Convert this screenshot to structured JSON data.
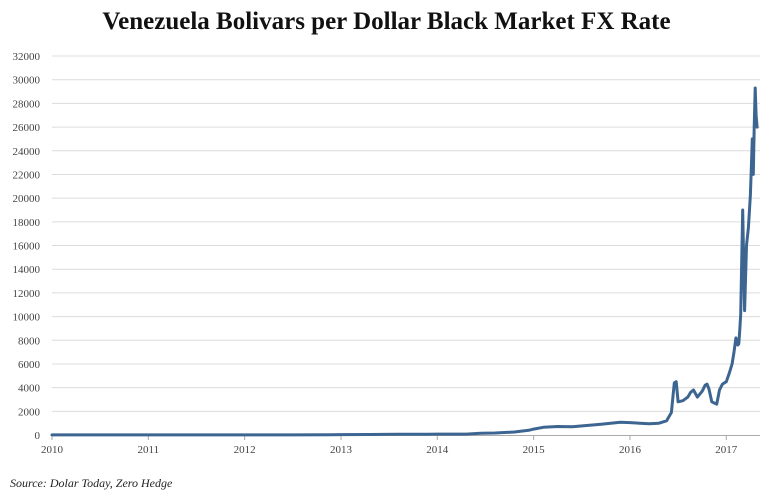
{
  "chart_data": {
    "type": "line",
    "title": "Venezuela Bolivars per Dollar Black Market FX Rate",
    "source": "Source: Dolar Today, Zero Hedge",
    "xlabel": "",
    "ylabel": "",
    "xlim": [
      2010,
      2017.35
    ],
    "ylim": [
      0,
      32000
    ],
    "y_ticks": [
      "0",
      "2000",
      "4000",
      "6000",
      "8000",
      "10000",
      "12000",
      "14000",
      "16000",
      "18000",
      "20000",
      "22000",
      "24000",
      "26000",
      "28000",
      "30000",
      "32000"
    ],
    "x_ticks": [
      "2010",
      "2011",
      "2012",
      "2013",
      "2014",
      "2015",
      "2016",
      "2017"
    ],
    "grid": true,
    "line_color": "#3d6591",
    "series": [
      {
        "x": [
          2010.0,
          2010.5,
          2011.0,
          2011.5,
          2012.0,
          2012.5,
          2012.9,
          2013.0,
          2013.3,
          2013.6,
          2013.9,
          2014.0,
          2014.3,
          2014.45,
          2014.6,
          2014.8,
          2014.95,
          2015.0,
          2015.1,
          2015.25,
          2015.4,
          2015.55,
          2015.7,
          2015.8,
          2015.9,
          2016.0,
          2016.1,
          2016.2,
          2016.3,
          2016.38,
          2016.43,
          2016.46,
          2016.48,
          2016.5,
          2016.55,
          2016.6,
          2016.63,
          2016.66,
          2016.7,
          2016.75,
          2016.78,
          2016.8,
          2016.82,
          2016.85,
          2016.9,
          2016.93,
          2016.96,
          2017.0,
          2017.03,
          2017.06,
          2017.08,
          2017.1,
          2017.12,
          2017.13,
          2017.14,
          2017.15,
          2017.17,
          2017.19,
          2017.21,
          2017.23,
          2017.25,
          2017.26,
          2017.27,
          2017.28,
          2017.29,
          2017.3,
          2017.31,
          2017.32
        ],
        "y": [
          8,
          9,
          9,
          9,
          10,
          12,
          20,
          30,
          40,
          55,
          65,
          75,
          80,
          150,
          170,
          250,
          400,
          500,
          650,
          720,
          700,
          800,
          900,
          1000,
          1080,
          1050,
          1000,
          950,
          1000,
          1200,
          1900,
          4400,
          4500,
          2800,
          2900,
          3200,
          3600,
          3800,
          3200,
          3700,
          4200,
          4300,
          3900,
          2800,
          2600,
          3800,
          4300,
          4500,
          5200,
          6000,
          7000,
          8200,
          7600,
          7700,
          8900,
          10200,
          19000,
          10500,
          16000,
          17500,
          20300,
          22500,
          25000,
          22000,
          26000,
          29300,
          27000,
          26000
        ]
      }
    ]
  }
}
